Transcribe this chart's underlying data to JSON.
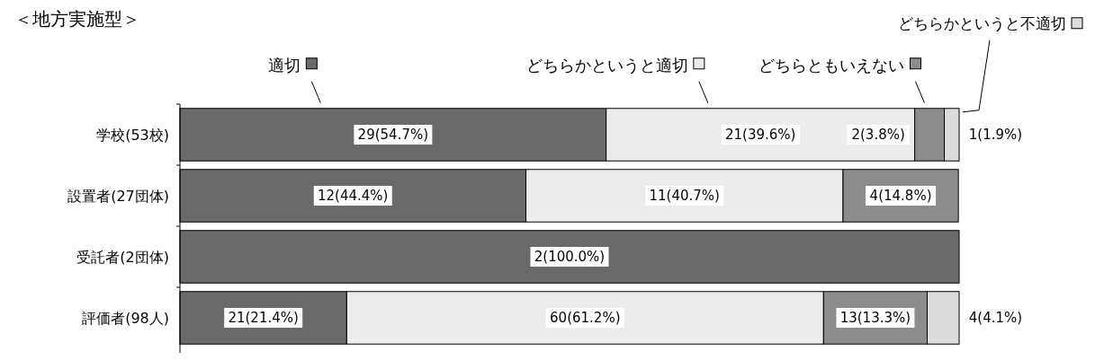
{
  "chart_data": {
    "type": "bar",
    "orientation": "horizontal",
    "stacked": true,
    "title": "＜地方実施型＞",
    "categories": [
      "学校(53校)",
      "設置者(27団体)",
      "受託者(2団体)",
      "評価者(98人)"
    ],
    "xlim": [
      0,
      100
    ],
    "tick_labels": "y",
    "legend": "top",
    "series": [
      {
        "name": "適切",
        "color": "#6a6a6a",
        "values": [
          54.7,
          44.4,
          100,
          21.4
        ],
        "value_labels": [
          "29(54.7%)",
          "12(44.4%)",
          "2(100.0%)",
          "21(21.4%)"
        ]
      },
      {
        "name": "どちらかというと適切",
        "color": "#ececec",
        "values": [
          39.6,
          40.7,
          null,
          61.2
        ],
        "value_labels": [
          "21(39.6%)",
          "11(40.7%)",
          null,
          "60(61.2%)"
        ]
      },
      {
        "name": "どちらともいえない",
        "color": "#8c8c8c",
        "values": [
          3.8,
          14.8,
          null,
          13.3
        ],
        "value_labels": [
          "2(3.8%)",
          "4(14.8%)",
          null,
          "13(13.3%)"
        ]
      },
      {
        "name": "どちらかというと不適切",
        "color": "#dcdcdc",
        "values": [
          1.9,
          null,
          null,
          4.1
        ],
        "value_labels": [
          "1(1.9%)",
          null,
          null,
          "4(4.1%)"
        ]
      }
    ]
  }
}
